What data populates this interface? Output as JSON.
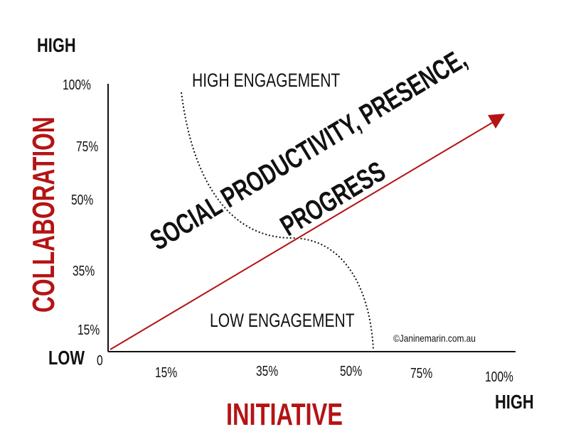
{
  "labels": {
    "y_high": "HIGH",
    "y_low": "LOW",
    "x_high": "HIGH",
    "origin": "0",
    "y_axis_title": "COLLABORATION",
    "x_axis_title": "INITIATIVE",
    "high_engagement": "HIGH ENGAGEMENT",
    "low_engagement": "LOW ENGAGEMENT",
    "diagonal_line1": "SOCIAL PRODUCTIVITY, PRESENCE,",
    "diagonal_line2": "PROGRESS",
    "copyright": "©Janinemarin.com.au"
  },
  "y_ticks": [
    "100%",
    "75%",
    "50%",
    "35%",
    "15%"
  ],
  "x_ticks": [
    "15%",
    "35%",
    "50%",
    "75%",
    "100%"
  ],
  "colors": {
    "accent_red": "#b41414",
    "text": "#111111"
  }
}
